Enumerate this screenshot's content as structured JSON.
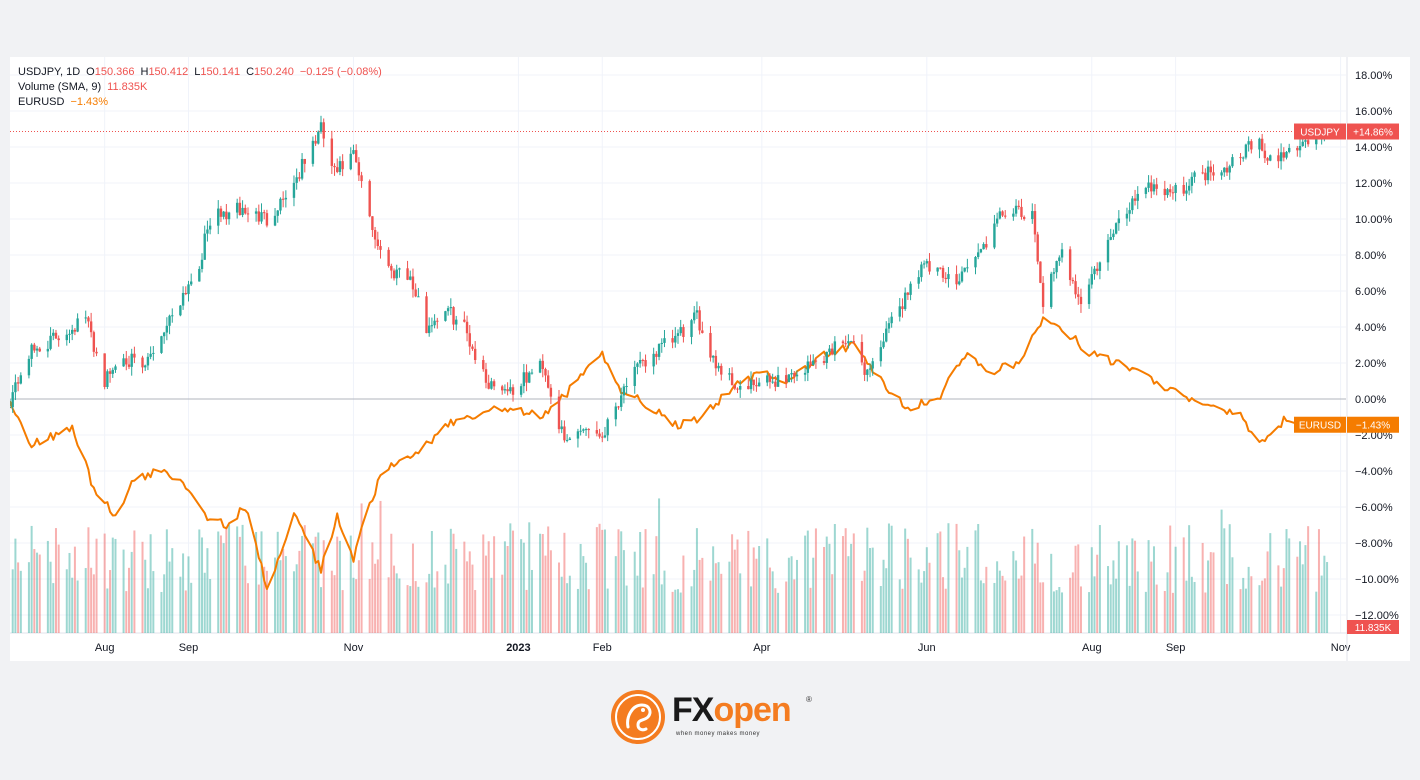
{
  "legend": {
    "symbol": "USDJPY, 1D",
    "open_label": "O",
    "open": "150.366",
    "high_label": "H",
    "high": "150.412",
    "low_label": "L",
    "low": "150.141",
    "close_label": "C",
    "close": "150.240",
    "change": "−0.125 (−0.08%)",
    "volume_label": "Volume (SMA, 9)",
    "volume_value": "11.835K",
    "compare_label": "EURUSD",
    "compare_value": "−1.43%"
  },
  "brand": {
    "name_pre": "FX",
    "name_accent": "open",
    "registered": "®",
    "tagline": "when money makes money"
  },
  "colors": {
    "up": "#26a69a",
    "down": "#ef5350",
    "compare": "#f57c00",
    "accent": "#f47c20"
  },
  "chart_data": {
    "type": "candlestick",
    "scale": "percent",
    "ylim": [
      -13,
      19
    ],
    "y_ticks": [
      "18.00%",
      "16.00%",
      "14.00%",
      "12.00%",
      "10.00%",
      "8.00%",
      "6.00%",
      "4.00%",
      "2.00%",
      "0.00%",
      "−2.00%",
      "−4.00%",
      "−6.00%",
      "−8.00%",
      "−10.00%",
      "−12.00%"
    ],
    "x_ticks": [
      {
        "label": "Aug",
        "date": "2022-08-01"
      },
      {
        "label": "Sep",
        "date": "2022-09-01"
      },
      {
        "label": "Nov",
        "date": "2022-11-01"
      },
      {
        "label": "2023",
        "date": "2023-01-01"
      },
      {
        "label": "Feb",
        "date": "2023-02-01"
      },
      {
        "label": "Apr",
        "date": "2023-04-01"
      },
      {
        "label": "Jun",
        "date": "2023-06-01"
      },
      {
        "label": "Aug",
        "date": "2023-08-01"
      },
      {
        "label": "Sep",
        "date": "2023-09-01"
      },
      {
        "label": "Nov",
        "date": "2023-11-01"
      }
    ],
    "date_range": [
      "2022-06-27",
      "2023-10-27"
    ],
    "series": [
      {
        "name": "USDJPY",
        "last_label": "+14.86%",
        "last_value": 14.86,
        "anchors": [
          [
            "2022-06-27",
            0.0
          ],
          [
            "2022-07-04",
            2.5
          ],
          [
            "2022-07-15",
            3.5
          ],
          [
            "2022-07-25",
            4.5
          ],
          [
            "2022-08-01",
            1.0
          ],
          [
            "2022-08-08",
            2.5
          ],
          [
            "2022-08-15",
            1.5
          ],
          [
            "2022-08-25",
            4.5
          ],
          [
            "2022-09-05",
            7.5
          ],
          [
            "2022-09-09",
            10.0
          ],
          [
            "2022-09-20",
            10.5
          ],
          [
            "2022-09-30",
            10.0
          ],
          [
            "2022-10-10",
            12.0
          ],
          [
            "2022-10-20",
            15.0
          ],
          [
            "2022-10-25",
            12.5
          ],
          [
            "2022-11-01",
            13.5
          ],
          [
            "2022-11-09",
            9.0
          ],
          [
            "2022-11-15",
            7.0
          ],
          [
            "2022-11-20",
            7.5
          ],
          [
            "2022-11-28",
            4.0
          ],
          [
            "2022-12-05",
            5.0
          ],
          [
            "2022-12-12",
            4.0
          ],
          [
            "2022-12-20",
            1.0
          ],
          [
            "2022-12-30",
            0.5
          ],
          [
            "2023-01-10",
            2.0
          ],
          [
            "2023-01-18",
            -2.5
          ],
          [
            "2023-01-25",
            -1.5
          ],
          [
            "2023-02-01",
            -2.0
          ],
          [
            "2023-02-10",
            1.0
          ],
          [
            "2023-02-20",
            2.5
          ],
          [
            "2023-03-01",
            3.5
          ],
          [
            "2023-03-08",
            4.5
          ],
          [
            "2023-03-15",
            2.0
          ],
          [
            "2023-03-24",
            0.5
          ],
          [
            "2023-04-05",
            1.0
          ],
          [
            "2023-04-15",
            1.5
          ],
          [
            "2023-04-25",
            2.5
          ],
          [
            "2023-05-02",
            3.5
          ],
          [
            "2023-05-10",
            1.5
          ],
          [
            "2023-05-20",
            4.5
          ],
          [
            "2023-05-30",
            7.5
          ],
          [
            "2023-06-10",
            6.5
          ],
          [
            "2023-06-20",
            8.0
          ],
          [
            "2023-06-30",
            10.5
          ],
          [
            "2023-07-10",
            10.0
          ],
          [
            "2023-07-14",
            5.5
          ],
          [
            "2023-07-21",
            8.0
          ],
          [
            "2023-07-28",
            5.5
          ],
          [
            "2023-08-10",
            9.5
          ],
          [
            "2023-08-20",
            12.0
          ],
          [
            "2023-09-01",
            11.5
          ],
          [
            "2023-09-10",
            12.5
          ],
          [
            "2023-09-20",
            13.0
          ],
          [
            "2023-10-01",
            14.5
          ],
          [
            "2023-10-05",
            13.0
          ],
          [
            "2023-10-15",
            14.0
          ],
          [
            "2023-10-27",
            14.86
          ]
        ]
      },
      {
        "name": "EURUSD",
        "last_label": "−1.43%",
        "last_value": -1.43,
        "anchors": [
          [
            "2022-06-27",
            0.0
          ],
          [
            "2022-07-05",
            -2.5
          ],
          [
            "2022-07-14",
            -2.0
          ],
          [
            "2022-07-20",
            -1.5
          ],
          [
            "2022-07-28",
            -5.0
          ],
          [
            "2022-08-05",
            -6.5
          ],
          [
            "2022-08-12",
            -4.5
          ],
          [
            "2022-08-22",
            -4.0
          ],
          [
            "2022-08-30",
            -4.5
          ],
          [
            "2022-09-08",
            -6.5
          ],
          [
            "2022-09-15",
            -7.0
          ],
          [
            "2022-09-22",
            -6.0
          ],
          [
            "2022-09-30",
            -10.5
          ],
          [
            "2022-10-10",
            -6.5
          ],
          [
            "2022-10-20",
            -9.5
          ],
          [
            "2022-10-26",
            -6.5
          ],
          [
            "2022-11-01",
            -9.0
          ],
          [
            "2022-11-05",
            -6.5
          ],
          [
            "2022-11-12",
            -4.0
          ],
          [
            "2022-11-20",
            -3.5
          ],
          [
            "2022-11-28",
            -2.5
          ],
          [
            "2022-12-05",
            -1.5
          ],
          [
            "2022-12-15",
            -1.0
          ],
          [
            "2022-12-25",
            -0.5
          ],
          [
            "2023-01-10",
            -1.0
          ],
          [
            "2023-01-20",
            0.5
          ],
          [
            "2023-01-26",
            1.5
          ],
          [
            "2023-02-01",
            2.5
          ],
          [
            "2023-02-08",
            0.5
          ],
          [
            "2023-02-20",
            -0.5
          ],
          [
            "2023-03-01",
            -1.5
          ],
          [
            "2023-03-10",
            -1.0
          ],
          [
            "2023-03-20",
            0.5
          ],
          [
            "2023-04-01",
            1.5
          ],
          [
            "2023-04-10",
            1.0
          ],
          [
            "2023-04-25",
            2.5
          ],
          [
            "2023-05-05",
            3.0
          ],
          [
            "2023-05-15",
            1.0
          ],
          [
            "2023-05-25",
            -0.5
          ],
          [
            "2023-06-05",
            0.0
          ],
          [
            "2023-06-15",
            2.5
          ],
          [
            "2023-06-25",
            1.5
          ],
          [
            "2023-07-05",
            2.0
          ],
          [
            "2023-07-14",
            4.5
          ],
          [
            "2023-07-20",
            4.0
          ],
          [
            "2023-08-01",
            2.5
          ],
          [
            "2023-08-10",
            2.0
          ],
          [
            "2023-08-25",
            1.0
          ],
          [
            "2023-09-05",
            0.0
          ],
          [
            "2023-09-15",
            -0.5
          ],
          [
            "2023-09-25",
            -1.0
          ],
          [
            "2023-10-03",
            -2.5
          ],
          [
            "2023-10-12",
            -1.0
          ],
          [
            "2023-10-17",
            -1.5
          ],
          [
            "2023-10-27",
            -1.43
          ]
        ]
      }
    ],
    "volume": {
      "name": "Volume",
      "last_label": "11.835K"
    }
  }
}
